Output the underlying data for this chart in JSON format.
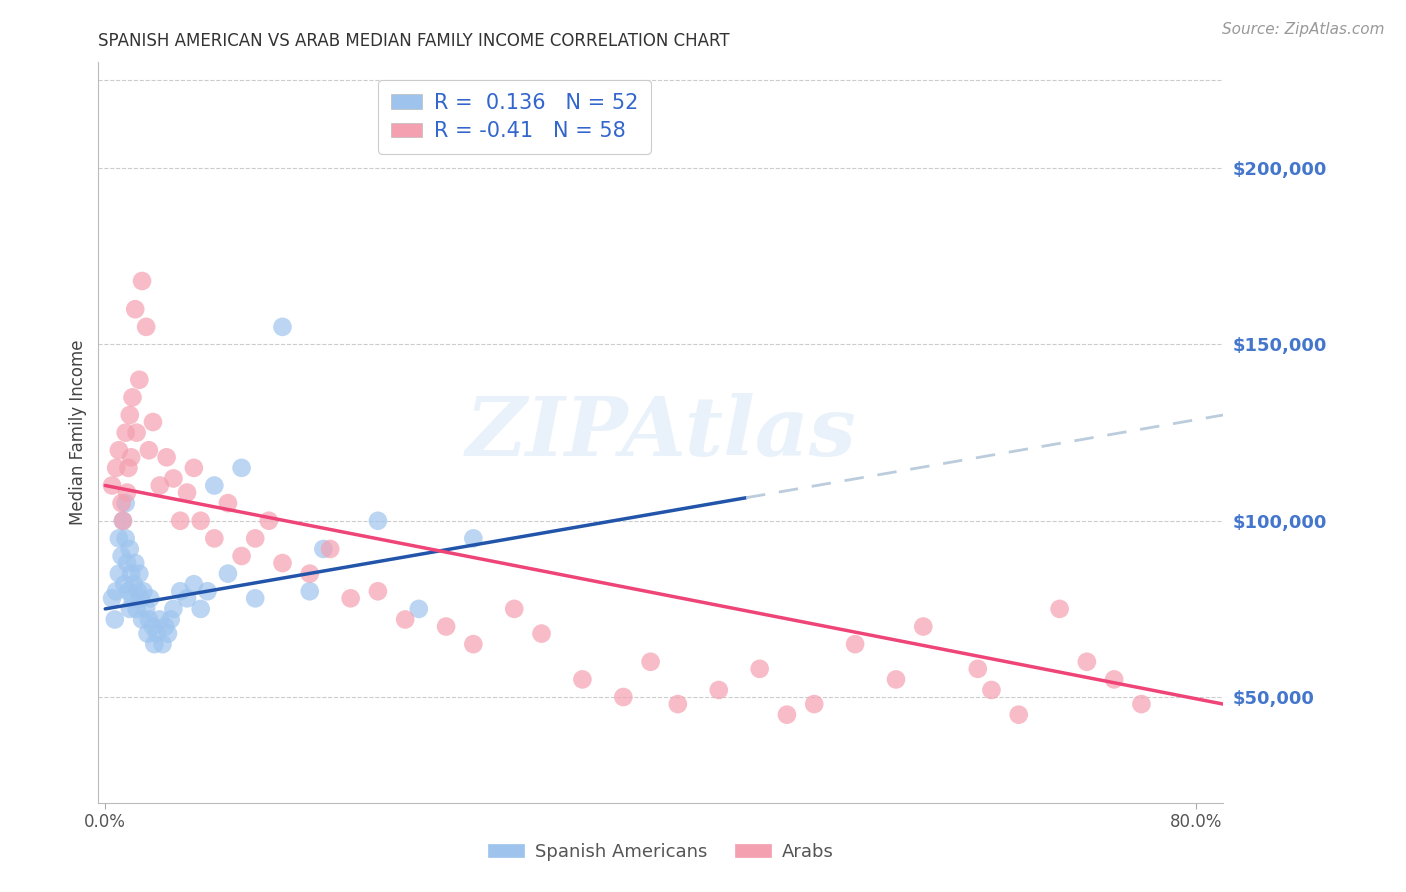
{
  "title": "SPANISH AMERICAN VS ARAB MEDIAN FAMILY INCOME CORRELATION CHART",
  "source": "Source: ZipAtlas.com",
  "ylabel": "Median Family Income",
  "watermark": "ZIPAtlas",
  "xlim": [
    -0.005,
    0.82
  ],
  "ylim": [
    20000,
    230000
  ],
  "yticks_right": [
    50000,
    100000,
    150000,
    200000
  ],
  "ytick_labels_right": [
    "$50,000",
    "$100,000",
    "$150,000",
    "$200,000"
  ],
  "blue_R": 0.136,
  "blue_N": 52,
  "pink_R": -0.41,
  "pink_N": 58,
  "blue_color": "#9EC4EE",
  "pink_color": "#F4A0B0",
  "blue_line_color": "#2255AA",
  "pink_line_color": "#EE4477",
  "dashed_line_color": "#BBCCDD",
  "grid_color": "#CCCCCC",
  "legend_label_blue": "Spanish Americans",
  "legend_label_pink": "Arabs",
  "legend_text_color": "#3366CC",
  "blue_scatter_x": [
    0.005,
    0.007,
    0.008,
    0.01,
    0.01,
    0.012,
    0.013,
    0.014,
    0.015,
    0.015,
    0.016,
    0.017,
    0.018,
    0.018,
    0.019,
    0.02,
    0.021,
    0.022,
    0.023,
    0.024,
    0.025,
    0.026,
    0.027,
    0.028,
    0.03,
    0.031,
    0.032,
    0.033,
    0.035,
    0.036,
    0.038,
    0.04,
    0.042,
    0.044,
    0.046,
    0.048,
    0.05,
    0.055,
    0.06,
    0.065,
    0.07,
    0.075,
    0.08,
    0.09,
    0.1,
    0.11,
    0.13,
    0.15,
    0.16,
    0.2,
    0.23,
    0.27
  ],
  "blue_scatter_y": [
    78000,
    72000,
    80000,
    95000,
    85000,
    90000,
    100000,
    82000,
    95000,
    105000,
    88000,
    80000,
    75000,
    92000,
    85000,
    78000,
    82000,
    88000,
    75000,
    80000,
    85000,
    78000,
    72000,
    80000,
    75000,
    68000,
    72000,
    78000,
    70000,
    65000,
    68000,
    72000,
    65000,
    70000,
    68000,
    72000,
    75000,
    80000,
    78000,
    82000,
    75000,
    80000,
    110000,
    85000,
    115000,
    78000,
    155000,
    80000,
    92000,
    100000,
    75000,
    95000
  ],
  "pink_scatter_x": [
    0.005,
    0.008,
    0.01,
    0.012,
    0.013,
    0.015,
    0.016,
    0.017,
    0.018,
    0.019,
    0.02,
    0.022,
    0.023,
    0.025,
    0.027,
    0.03,
    0.032,
    0.035,
    0.04,
    0.045,
    0.05,
    0.055,
    0.06,
    0.065,
    0.07,
    0.08,
    0.09,
    0.1,
    0.11,
    0.12,
    0.13,
    0.15,
    0.165,
    0.18,
    0.2,
    0.22,
    0.25,
    0.27,
    0.3,
    0.32,
    0.35,
    0.38,
    0.4,
    0.42,
    0.45,
    0.48,
    0.5,
    0.52,
    0.55,
    0.58,
    0.6,
    0.64,
    0.65,
    0.67,
    0.7,
    0.72,
    0.74,
    0.76
  ],
  "pink_scatter_y": [
    110000,
    115000,
    120000,
    105000,
    100000,
    125000,
    108000,
    115000,
    130000,
    118000,
    135000,
    160000,
    125000,
    140000,
    168000,
    155000,
    120000,
    128000,
    110000,
    118000,
    112000,
    100000,
    108000,
    115000,
    100000,
    95000,
    105000,
    90000,
    95000,
    100000,
    88000,
    85000,
    92000,
    78000,
    80000,
    72000,
    70000,
    65000,
    75000,
    68000,
    55000,
    50000,
    60000,
    48000,
    52000,
    58000,
    45000,
    48000,
    65000,
    55000,
    70000,
    58000,
    52000,
    45000,
    75000,
    60000,
    55000,
    48000
  ]
}
